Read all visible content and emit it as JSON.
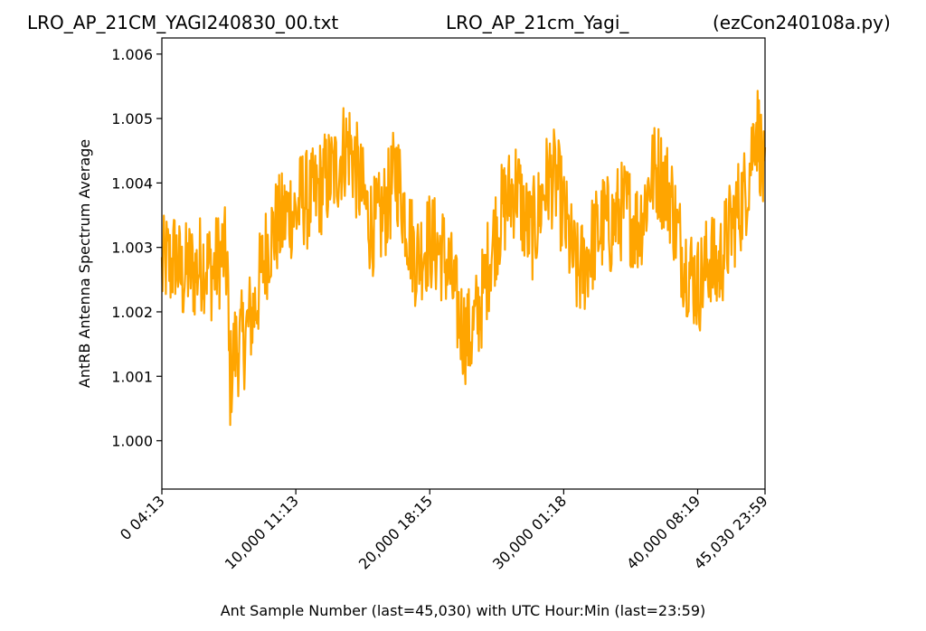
{
  "titles": {
    "left": "LRO_AP_21CM_YAGI240830_00.txt",
    "center": "LRO_AP_21cm_Yagi_",
    "right": "(ezCon240108a.py)"
  },
  "chart_data": {
    "type": "line",
    "xlabel": "Ant Sample Number (last=45,030) with UTC Hour:Min (last=23:59)",
    "ylabel": "AntRB Antenna Spectrum Average",
    "xlim": [
      0,
      45030
    ],
    "ylim": [
      0.99925,
      1.00625
    ],
    "grid": false,
    "yticks": [
      {
        "value": 1.0,
        "label": "1.000"
      },
      {
        "value": 1.001,
        "label": "1.001"
      },
      {
        "value": 1.002,
        "label": "1.002"
      },
      {
        "value": 1.003,
        "label": "1.003"
      },
      {
        "value": 1.004,
        "label": "1.004"
      },
      {
        "value": 1.005,
        "label": "1.005"
      },
      {
        "value": 1.006,
        "label": "1.006"
      }
    ],
    "xticks": [
      {
        "value": 0,
        "label": "0  04:13"
      },
      {
        "value": 10000,
        "label": "10,000  11:13"
      },
      {
        "value": 20000,
        "label": "20,000  18:15"
      },
      {
        "value": 30000,
        "label": "30,000  01:18"
      },
      {
        "value": 40000,
        "label": "40,000  08:19"
      },
      {
        "value": 45030,
        "label": "45,030  23:59"
      }
    ],
    "series": [
      {
        "color": "#ffa500",
        "x": [
          0,
          300,
          700,
          1000,
          1500,
          2000,
          2500,
          3000,
          3500,
          3800,
          4200,
          4600,
          4900,
          5000,
          5100,
          5200,
          5400,
          5800,
          6200,
          6600,
          7000,
          7500,
          8000,
          8500,
          9000,
          9300,
          9600,
          10000,
          10500,
          11000,
          11500,
          12000,
          12500,
          13000,
          13500,
          14000,
          14500,
          15000,
          15500,
          16000,
          16500,
          17000,
          17500,
          18000,
          18500,
          19000,
          19500,
          20000,
          20500,
          21000,
          21500,
          22000,
          22500,
          23000,
          23500,
          24000,
          24500,
          25000,
          25500,
          26000,
          26500,
          27000,
          27500,
          28000,
          28500,
          29000,
          29500,
          30000,
          30500,
          31000,
          31500,
          32000,
          32500,
          33000,
          33500,
          34000,
          34500,
          35000,
          35500,
          36000,
          36500,
          37000,
          37500,
          38000,
          38500,
          39000,
          39500,
          40000,
          40500,
          41000,
          41300,
          41600,
          42000,
          42500,
          43000,
          43500,
          44000,
          44300,
          44600,
          45030
        ],
        "values": [
          1.0026,
          1.0028,
          1.0027,
          1.0029,
          1.0025,
          1.0027,
          1.0026,
          1.0028,
          1.0027,
          1.0026,
          1.0028,
          1.0029,
          1.0027,
          1.0013,
          1.0009,
          1.0011,
          1.0014,
          1.0015,
          1.0016,
          1.0019,
          1.0021,
          1.0027,
          1.0031,
          1.0033,
          1.0034,
          1.0035,
          1.0036,
          1.0035,
          1.0038,
          1.0037,
          1.0038,
          1.004,
          1.0041,
          1.0042,
          1.0045,
          1.0046,
          1.0042,
          1.0038,
          1.0034,
          1.0033,
          1.0035,
          1.0038,
          1.0042,
          1.0037,
          1.0032,
          1.0028,
          1.003,
          1.0031,
          1.003,
          1.0029,
          1.0026,
          1.0021,
          1.0017,
          1.0016,
          1.0019,
          1.0023,
          1.0029,
          1.0033,
          1.0036,
          1.0038,
          1.004,
          1.0035,
          1.0032,
          1.0034,
          1.0039,
          1.0041,
          1.004,
          1.0035,
          1.003,
          1.0026,
          1.0027,
          1.003,
          1.0032,
          1.0034,
          1.0033,
          1.0035,
          1.0036,
          1.0035,
          1.0033,
          1.0036,
          1.0041,
          1.0042,
          1.004,
          1.0038,
          1.0032,
          1.0028,
          1.0026,
          1.0024,
          1.0026,
          1.0029,
          1.0026,
          1.0027,
          1.003,
          1.0033,
          1.0036,
          1.0038,
          1.0044,
          1.005,
          1.0047,
          1.0038
        ]
      }
    ]
  }
}
